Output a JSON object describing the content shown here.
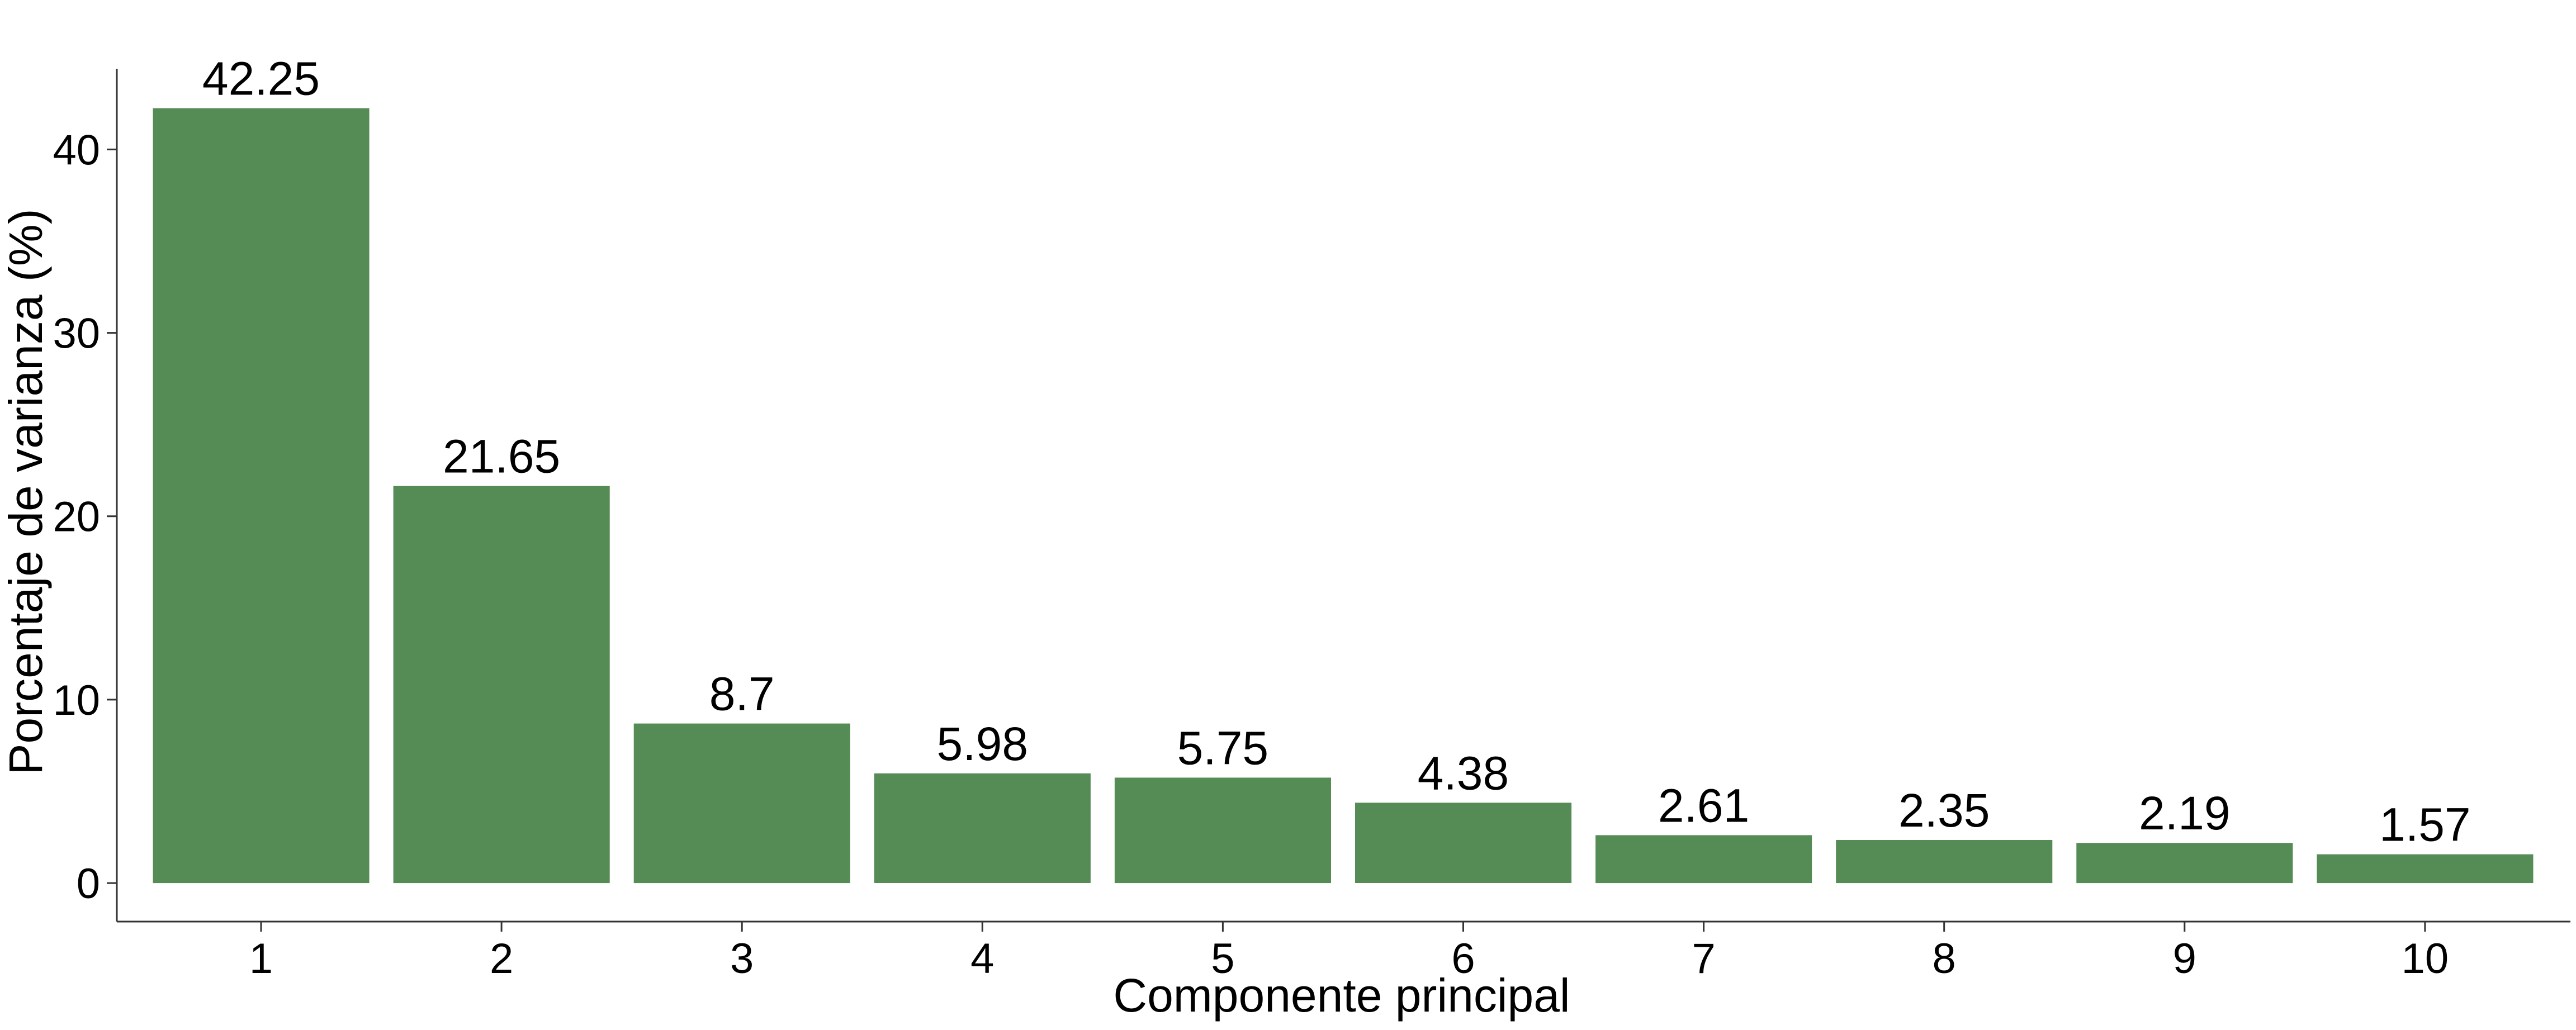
{
  "chart_data": {
    "type": "bar",
    "categories": [
      "1",
      "2",
      "3",
      "4",
      "5",
      "6",
      "7",
      "8",
      "9",
      "10"
    ],
    "values": [
      42.25,
      21.65,
      8.7,
      5.98,
      5.75,
      4.38,
      2.61,
      2.35,
      2.19,
      1.57
    ],
    "data_labels": [
      "42.25",
      "21.65",
      "8.7",
      "5.98",
      "5.75",
      "4.38",
      "2.61",
      "2.35",
      "2.19",
      "1.57"
    ],
    "title": "",
    "xlabel": "Componente principal",
    "ylabel": "Porcentaje de varianza (%)",
    "ylim": [
      -2.1,
      44.4
    ],
    "yticks": [
      0,
      10,
      20,
      30,
      40
    ],
    "bar_color": "#558B55",
    "grid": false,
    "legend": "none"
  }
}
